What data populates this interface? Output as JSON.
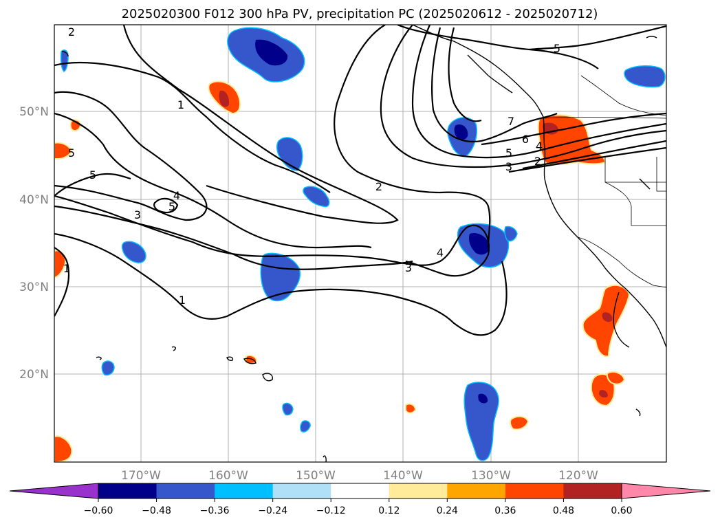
{
  "title": "2025020300 F012 300 hPa PV, precipitation PC (2025020612 - 2025020712)",
  "map": {
    "lon_ticks": [
      "170°W",
      "160°W",
      "150°W",
      "140°W",
      "130°W",
      "120°W"
    ],
    "lat_ticks": [
      "50°N",
      "40°N",
      "30°N",
      "20°N"
    ],
    "contour_labels": [
      "2",
      "5",
      "1",
      "5",
      "4",
      "5",
      "3",
      "1",
      "2",
      "7",
      "6",
      "5",
      "4",
      "3",
      "2",
      "3",
      "4",
      "1",
      "5"
    ],
    "colors": {
      "neg_060": "#00008b",
      "neg_048": "#3358cc",
      "neg_036": "#00bfff",
      "neg_024": "#b0e0f8",
      "pos_024": "#ffa500",
      "pos_036": "#ff4500",
      "pos_048": "#b22222",
      "pos_012": "#ffeb99"
    }
  },
  "colorbar": {
    "ticks": [
      "−0.60",
      "−0.48",
      "−0.36",
      "−0.24",
      "−0.12",
      "0.12",
      "0.24",
      "0.36",
      "0.48",
      "0.60"
    ],
    "segment_colors": [
      "#00008b",
      "#3656cc",
      "#00bfff",
      "#b0e0f8",
      "#ffffff",
      "#ffeb99",
      "#ffa500",
      "#ff4500",
      "#b22222"
    ],
    "under_color": "#9932cc",
    "over_color": "#ff88aa"
  }
}
